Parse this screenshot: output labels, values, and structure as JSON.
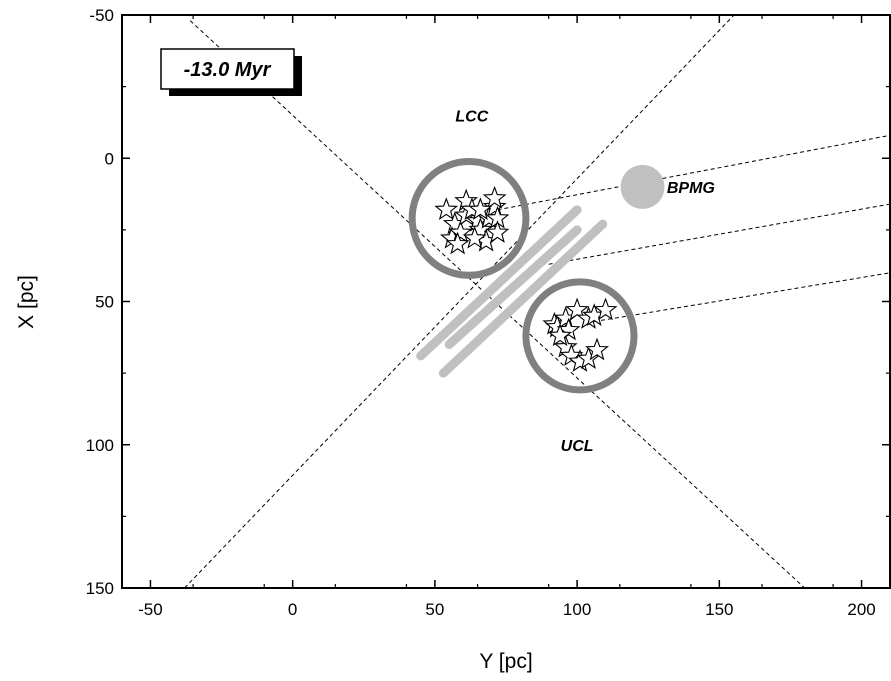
{
  "chart_data": {
    "type": "scatter",
    "title": "",
    "xlabel": "Y [pc]",
    "ylabel": "X [pc]",
    "xlim": [
      -60,
      210
    ],
    "ylim": [
      -50,
      150
    ],
    "y_inverted": true,
    "x_ticks": [
      -50,
      0,
      50,
      100,
      150,
      200
    ],
    "y_ticks": [
      -50,
      0,
      50,
      100,
      150
    ],
    "x_tick_labels": [
      "-50",
      "0",
      "50",
      "100",
      "150",
      "200"
    ],
    "y_tick_labels": [
      "-50",
      "0",
      "50",
      "100",
      "150"
    ],
    "grid": false,
    "time_label": "-13.0 Myr",
    "labels": [
      {
        "text": "LCC",
        "x": 63,
        "y": -15
      },
      {
        "text": "UCL",
        "x": 100,
        "y": 100
      },
      {
        "text": "BPMG",
        "x": 140,
        "y": 10
      }
    ],
    "circles": [
      {
        "name": "LCC",
        "cx": 62,
        "cy": 21,
        "r": 20,
        "color": "#808080"
      },
      {
        "name": "UCL",
        "cx": 101,
        "cy": 62,
        "r": 19,
        "color": "#808080"
      }
    ],
    "bpmg_point": {
      "x": 123,
      "y": 10,
      "color": "#c0c0c0"
    },
    "series": [
      {
        "name": "LCC",
        "marker": "star",
        "points": [
          [
            54,
            18
          ],
          [
            57,
            23
          ],
          [
            56,
            28
          ],
          [
            59,
            26
          ],
          [
            61,
            20
          ],
          [
            61,
            15
          ],
          [
            63,
            18
          ],
          [
            65,
            22
          ],
          [
            66,
            25
          ],
          [
            68,
            29
          ],
          [
            69,
            21
          ],
          [
            71,
            17
          ],
          [
            72,
            21
          ],
          [
            72,
            26
          ],
          [
            71,
            14
          ],
          [
            64,
            28
          ],
          [
            66,
            18
          ],
          [
            58,
            30
          ]
        ]
      },
      {
        "name": "UCL",
        "marker": "star",
        "points": [
          [
            92,
            58
          ],
          [
            93,
            59
          ],
          [
            96,
            56
          ],
          [
            97,
            60
          ],
          [
            100,
            53
          ],
          [
            104,
            56
          ],
          [
            106,
            55
          ],
          [
            110,
            53
          ],
          [
            96,
            66
          ],
          [
            98,
            69
          ],
          [
            101,
            71
          ],
          [
            104,
            70
          ],
          [
            107,
            67
          ],
          [
            94,
            62
          ]
        ]
      }
    ],
    "dashed_lines": [
      {
        "points": [
          [
            -36,
            -48
          ],
          [
            180,
            150
          ]
        ]
      },
      {
        "points": [
          [
            -38,
            150
          ],
          [
            160,
            -55
          ]
        ]
      },
      {
        "points": [
          [
            72,
            18
          ],
          [
            210,
            -8
          ]
        ]
      },
      {
        "points": [
          [
            90,
            37
          ],
          [
            210,
            16
          ]
        ]
      },
      {
        "points": [
          [
            106,
            57
          ],
          [
            210,
            40
          ]
        ]
      }
    ],
    "gray_bars": [
      {
        "points": [
          [
            45,
            69
          ],
          [
            100,
            18
          ]
        ]
      },
      {
        "points": [
          [
            55,
            65
          ],
          [
            100,
            25
          ]
        ]
      },
      {
        "points": [
          [
            53,
            75
          ],
          [
            109,
            23
          ]
        ]
      }
    ]
  }
}
